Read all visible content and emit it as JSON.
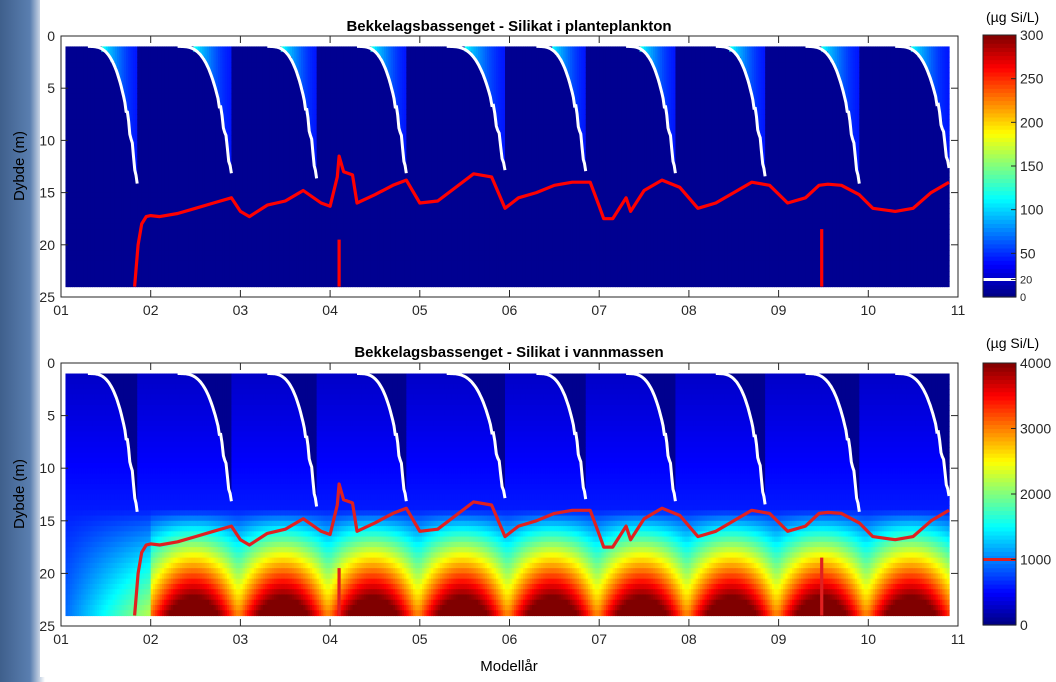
{
  "figure": {
    "xlabel": "Modellår"
  },
  "chart_data": [
    {
      "type": "heatmap",
      "title": "Bekkelagsbassenget - Silikat i planteplankton",
      "ylabel": "Dybde (m)",
      "xlabel": "",
      "xlim": [
        1,
        11
      ],
      "ylim": [
        0,
        25
      ],
      "y_reversed": true,
      "xticks": [
        1,
        2,
        3,
        4,
        5,
        6,
        7,
        8,
        9,
        10,
        11
      ],
      "xtick_labels": [
        "01",
        "02",
        "03",
        "04",
        "05",
        "06",
        "07",
        "08",
        "09",
        "10",
        "11"
      ],
      "yticks": [
        0,
        5,
        10,
        15,
        20,
        25
      ],
      "ytick_labels": [
        "0",
        "5",
        "10",
        "15",
        "20",
        "25"
      ],
      "colorbar": {
        "unit": "(µg Si/L)",
        "colormap": "jet",
        "range": [
          0,
          300
        ],
        "ticks": [
          0,
          20,
          50,
          100,
          150,
          200,
          250,
          300
        ],
        "tick_labels": [
          "0",
          "20",
          "50",
          "100",
          "150",
          "200",
          "250",
          "300"
        ],
        "marker_value": 20,
        "marker_color": "#ffffff"
      },
      "data_depth_range": [
        1,
        24
      ],
      "data_x_range": [
        1.05,
        10.9
      ],
      "blooms": [
        {
          "start": 1.3,
          "end": 1.85,
          "depth": 14.5
        },
        {
          "start": 2.3,
          "end": 2.9,
          "depth": 13.5
        },
        {
          "start": 3.3,
          "end": 3.85,
          "depth": 14.0
        },
        {
          "start": 4.3,
          "end": 4.85,
          "depth": 13.5
        },
        {
          "start": 5.3,
          "end": 5.95,
          "depth": 13.2
        },
        {
          "start": 6.3,
          "end": 6.85,
          "depth": 13.3
        },
        {
          "start": 7.3,
          "end": 7.85,
          "depth": 13.5
        },
        {
          "start": 8.3,
          "end": 8.85,
          "depth": 13.8
        },
        {
          "start": 9.3,
          "end": 9.9,
          "depth": 14.5
        },
        {
          "start": 10.3,
          "end": 10.9,
          "depth": 13.0
        }
      ],
      "series": [
        {
          "color": "#ff0000",
          "x": [
            1.82,
            1.86,
            1.9,
            1.95,
            2.0,
            2.1,
            2.3,
            2.5,
            2.7,
            2.9,
            3.0,
            3.1,
            3.3,
            3.5,
            3.7,
            3.9,
            4.0,
            4.08,
            4.1,
            4.15,
            4.25,
            4.3,
            4.5,
            4.7,
            4.85,
            5.0,
            5.2,
            5.4,
            5.6,
            5.8,
            5.95,
            6.1,
            6.3,
            6.5,
            6.7,
            6.9,
            7.0,
            7.05,
            7.15,
            7.3,
            7.35,
            7.5,
            7.7,
            7.9,
            8.1,
            8.3,
            8.5,
            8.7,
            8.9,
            9.1,
            9.3,
            9.45,
            9.55,
            9.7,
            9.9,
            10.05,
            10.3,
            10.5,
            10.7,
            10.9
          ],
          "y": [
            24,
            20,
            18,
            17.3,
            17.2,
            17.3,
            17.0,
            16.5,
            16.0,
            15.5,
            16.8,
            17.3,
            16.2,
            15.8,
            14.8,
            16.0,
            16.3,
            13.5,
            11.5,
            13.0,
            13.3,
            16.0,
            15.2,
            14.3,
            13.8,
            16.0,
            15.8,
            14.5,
            13.2,
            13.5,
            16.5,
            15.5,
            15.0,
            14.3,
            14.0,
            14.0,
            16.3,
            17.5,
            17.5,
            15.5,
            16.8,
            14.8,
            13.8,
            14.5,
            16.5,
            16.0,
            15.0,
            14.0,
            14.3,
            16.0,
            15.5,
            14.3,
            14.2,
            14.3,
            15.2,
            16.5,
            16.8,
            16.5,
            15.0,
            14.0
          ]
        },
        {
          "color": "#ff0000",
          "x": [
            4.1,
            4.1
          ],
          "y": [
            19.5,
            24
          ]
        },
        {
          "color": "#ff0000",
          "x": [
            9.48,
            9.48
          ],
          "y": [
            18.5,
            24
          ]
        }
      ]
    },
    {
      "type": "heatmap",
      "title": "Bekkelagsbassenget - Silikat i vannmassen",
      "ylabel": "Dybde (m)",
      "xlabel": "Modellår",
      "xlim": [
        1,
        11
      ],
      "ylim": [
        0,
        25
      ],
      "y_reversed": true,
      "xticks": [
        1,
        2,
        3,
        4,
        5,
        6,
        7,
        8,
        9,
        10,
        11
      ],
      "xtick_labels": [
        "01",
        "02",
        "03",
        "04",
        "05",
        "06",
        "07",
        "08",
        "09",
        "10",
        "11"
      ],
      "yticks": [
        0,
        5,
        10,
        15,
        20,
        25
      ],
      "ytick_labels": [
        "0",
        "5",
        "10",
        "15",
        "20",
        "25"
      ],
      "colorbar": {
        "unit": "(µg Si/L)",
        "colormap": "jet",
        "range": [
          0,
          4000
        ],
        "ticks": [
          0,
          1000,
          2000,
          3000,
          4000
        ],
        "tick_labels": [
          "0",
          "1000",
          "2000",
          "3000",
          "4000"
        ],
        "marker_value": 1000,
        "marker_color": "#e02020"
      },
      "data_depth_range": [
        1,
        24
      ],
      "data_x_range": [
        1.05,
        10.9
      ],
      "blooms": [
        {
          "start": 1.3,
          "end": 1.85,
          "depth": 14.5
        },
        {
          "start": 2.3,
          "end": 2.9,
          "depth": 13.5
        },
        {
          "start": 3.3,
          "end": 3.85,
          "depth": 14.0
        },
        {
          "start": 4.3,
          "end": 4.85,
          "depth": 13.5
        },
        {
          "start": 5.3,
          "end": 5.95,
          "depth": 13.2
        },
        {
          "start": 6.3,
          "end": 6.85,
          "depth": 13.3
        },
        {
          "start": 7.3,
          "end": 7.85,
          "depth": 13.5
        },
        {
          "start": 8.3,
          "end": 8.85,
          "depth": 13.8
        },
        {
          "start": 9.3,
          "end": 9.9,
          "depth": 14.5
        },
        {
          "start": 10.3,
          "end": 10.9,
          "depth": 13.0
        }
      ],
      "series": [
        {
          "color": "#e02020",
          "x": [
            1.82,
            1.86,
            1.9,
            1.95,
            2.0,
            2.1,
            2.3,
            2.5,
            2.7,
            2.9,
            3.0,
            3.1,
            3.3,
            3.5,
            3.7,
            3.9,
            4.0,
            4.08,
            4.1,
            4.15,
            4.25,
            4.3,
            4.5,
            4.7,
            4.85,
            5.0,
            5.2,
            5.4,
            5.6,
            5.8,
            5.95,
            6.1,
            6.3,
            6.5,
            6.7,
            6.9,
            7.0,
            7.05,
            7.15,
            7.3,
            7.35,
            7.5,
            7.7,
            7.9,
            8.1,
            8.3,
            8.5,
            8.7,
            8.9,
            9.1,
            9.3,
            9.45,
            9.55,
            9.7,
            9.9,
            10.05,
            10.3,
            10.5,
            10.7,
            10.9
          ],
          "y": [
            24,
            20,
            18,
            17.3,
            17.2,
            17.3,
            17.0,
            16.5,
            16.0,
            15.5,
            16.8,
            17.3,
            16.2,
            15.8,
            14.8,
            16.0,
            16.3,
            13.5,
            11.5,
            13.0,
            13.3,
            16.0,
            15.2,
            14.3,
            13.8,
            16.0,
            15.8,
            14.5,
            13.2,
            13.5,
            16.5,
            15.5,
            15.0,
            14.3,
            14.0,
            14.0,
            16.3,
            17.5,
            17.5,
            15.5,
            16.8,
            14.8,
            13.8,
            14.5,
            16.5,
            16.0,
            15.0,
            14.0,
            14.3,
            16.0,
            15.5,
            14.3,
            14.2,
            14.3,
            15.2,
            16.5,
            16.8,
            16.5,
            15.0,
            14.0
          ]
        },
        {
          "color": "#e02020",
          "x": [
            4.1,
            4.1
          ],
          "y": [
            19.5,
            24
          ]
        },
        {
          "color": "#e02020",
          "x": [
            9.48,
            9.48
          ],
          "y": [
            18.5,
            24
          ]
        }
      ],
      "deep_maxima": [
        {
          "x": 2.9,
          "y": 22,
          "value": 3800
        },
        {
          "x": 3.95,
          "y": 22,
          "value": 3800
        },
        {
          "x": 4.95,
          "y": 21.5,
          "value": 3700
        },
        {
          "x": 5.9,
          "y": 22,
          "value": 4000
        },
        {
          "x": 6.85,
          "y": 22,
          "value": 4000
        },
        {
          "x": 7.95,
          "y": 22,
          "value": 3200
        },
        {
          "x": 8.9,
          "y": 22,
          "value": 4000
        },
        {
          "x": 9.9,
          "y": 22,
          "value": 3300
        },
        {
          "x": 10.9,
          "y": 22,
          "value": 3000
        }
      ]
    }
  ]
}
